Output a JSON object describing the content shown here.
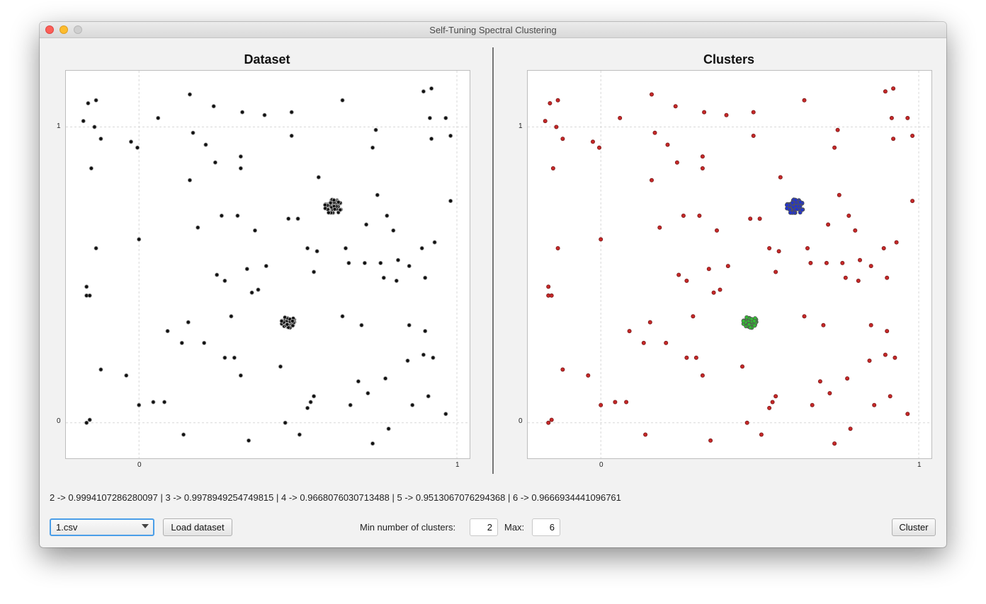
{
  "window": {
    "title": "Self-Tuning Spectral Clustering"
  },
  "charts": {
    "dataset": {
      "title": "Dataset"
    },
    "clusters": {
      "title": "Clusters"
    },
    "ticks": {
      "x0": "0",
      "x1": "1",
      "y0": "0",
      "y1": "1"
    }
  },
  "scores_text": "2 -> 0.9994107286280097 | 3 -> 0.9978949254749815 | 4 -> 0.9668076030713488 | 5 -> 0.9513067076294368 | 6 -> 0.9666934441096761",
  "controls": {
    "dataset_select": "1.csv",
    "load_button": "Load dataset",
    "min_label": "Min number of clusters:",
    "min_value": "2",
    "max_label": "Max:",
    "max_value": "6",
    "cluster_button": "Cluster"
  },
  "colors": {
    "dataset_points": "#111111",
    "noise_cluster": "#c62828",
    "cluster_blue": "#2233cc",
    "cluster_green": "#33bb33"
  },
  "chart_data": [
    {
      "type": "scatter",
      "title": "Dataset",
      "xlim": [
        -0.23,
        1.04
      ],
      "ylim": [
        -0.12,
        1.19
      ],
      "grid": true,
      "clusters": [
        {
          "center": [
            0.61,
            0.73
          ],
          "spread": 0.025,
          "count": 60
        },
        {
          "center": [
            0.47,
            0.34
          ],
          "spread": 0.02,
          "count": 40
        }
      ],
      "points": [
        [
          -0.175,
          1.02
        ],
        [
          -0.16,
          1.08
        ],
        [
          -0.135,
          1.09
        ],
        [
          -0.14,
          1.0
        ],
        [
          -0.12,
          0.96
        ],
        [
          -0.15,
          0.86
        ],
        [
          0.16,
          1.11
        ],
        [
          0.235,
          1.07
        ],
        [
          0.325,
          1.05
        ],
        [
          0.395,
          1.04
        ],
        [
          0.48,
          1.05
        ],
        [
          0.64,
          1.09
        ],
        [
          0.06,
          1.03
        ],
        [
          0.17,
          0.98
        ],
        [
          0.21,
          0.94
        ],
        [
          0.24,
          0.88
        ],
        [
          0.32,
          0.9
        ],
        [
          0.32,
          0.86
        ],
        [
          0.48,
          0.97
        ],
        [
          0.16,
          0.82
        ],
        [
          -0.025,
          0.95
        ],
        [
          -0.005,
          0.93
        ],
        [
          0.565,
          0.83
        ],
        [
          0.735,
          0.93
        ],
        [
          0.745,
          0.99
        ],
        [
          0.895,
          1.12
        ],
        [
          0.92,
          1.13
        ],
        [
          0.915,
          1.03
        ],
        [
          0.92,
          0.96
        ],
        [
          0.965,
          1.03
        ],
        [
          0.98,
          0.97
        ],
        [
          0.98,
          0.75
        ],
        [
          0.26,
          0.7
        ],
        [
          0.31,
          0.7
        ],
        [
          0.185,
          0.66
        ],
        [
          0.365,
          0.65
        ],
        [
          0.47,
          0.69
        ],
        [
          0.5,
          0.69
        ],
        [
          0.75,
          0.77
        ],
        [
          0.78,
          0.7
        ],
        [
          0.715,
          0.67
        ],
        [
          0.8,
          0.65
        ],
        [
          0.93,
          0.61
        ],
        [
          -0.135,
          0.59
        ],
        [
          0.0,
          0.62
        ],
        [
          0.53,
          0.59
        ],
        [
          0.56,
          0.58
        ],
        [
          0.65,
          0.59
        ],
        [
          0.66,
          0.54
        ],
        [
          0.71,
          0.54
        ],
        [
          0.76,
          0.54
        ],
        [
          0.815,
          0.55
        ],
        [
          0.85,
          0.53
        ],
        [
          0.89,
          0.59
        ],
        [
          0.245,
          0.5
        ],
        [
          0.27,
          0.48
        ],
        [
          0.34,
          0.52
        ],
        [
          0.4,
          0.53
        ],
        [
          0.55,
          0.51
        ],
        [
          0.77,
          0.49
        ],
        [
          0.81,
          0.48
        ],
        [
          0.9,
          0.49
        ],
        [
          -0.165,
          0.46
        ],
        [
          -0.165,
          0.43
        ],
        [
          -0.155,
          0.43
        ],
        [
          0.355,
          0.44
        ],
        [
          0.375,
          0.45
        ],
        [
          0.155,
          0.34
        ],
        [
          0.29,
          0.36
        ],
        [
          0.64,
          0.36
        ],
        [
          0.7,
          0.33
        ],
        [
          0.09,
          0.31
        ],
        [
          0.135,
          0.27
        ],
        [
          0.205,
          0.27
        ],
        [
          0.85,
          0.33
        ],
        [
          0.9,
          0.31
        ],
        [
          0.27,
          0.22
        ],
        [
          0.3,
          0.22
        ],
        [
          0.32,
          0.16
        ],
        [
          0.445,
          0.19
        ],
        [
          -0.12,
          0.18
        ],
        [
          -0.04,
          0.16
        ],
        [
          0.845,
          0.21
        ],
        [
          0.895,
          0.23
        ],
        [
          0.925,
          0.22
        ],
        [
          0.69,
          0.14
        ],
        [
          0.775,
          0.15
        ],
        [
          0.72,
          0.1
        ],
        [
          0.045,
          0.07
        ],
        [
          0.08,
          0.07
        ],
        [
          0.0,
          0.06
        ],
        [
          0.55,
          0.09
        ],
        [
          0.54,
          0.07
        ],
        [
          0.53,
          0.05
        ],
        [
          0.665,
          0.06
        ],
        [
          0.86,
          0.06
        ],
        [
          0.91,
          0.09
        ],
        [
          0.965,
          0.03
        ],
        [
          -0.165,
          0.0
        ],
        [
          -0.155,
          0.01
        ],
        [
          0.14,
          -0.04
        ],
        [
          0.46,
          0.0
        ],
        [
          0.505,
          -0.04
        ],
        [
          0.345,
          -0.06
        ],
        [
          0.735,
          -0.07
        ],
        [
          0.785,
          -0.02
        ]
      ]
    },
    {
      "type": "scatter",
      "title": "Clusters",
      "xlim": [
        -0.23,
        1.04
      ],
      "ylim": [
        -0.12,
        1.19
      ],
      "grid": true,
      "series": [
        {
          "color": "#2233cc",
          "cluster": {
            "center": [
              0.61,
              0.73
            ],
            "spread": 0.025,
            "count": 60
          }
        },
        {
          "color": "#33bb33",
          "cluster": {
            "center": [
              0.47,
              0.34
            ],
            "spread": 0.02,
            "count": 40
          }
        },
        {
          "color": "#c62828",
          "uses_dataset_noise": true
        }
      ]
    }
  ]
}
